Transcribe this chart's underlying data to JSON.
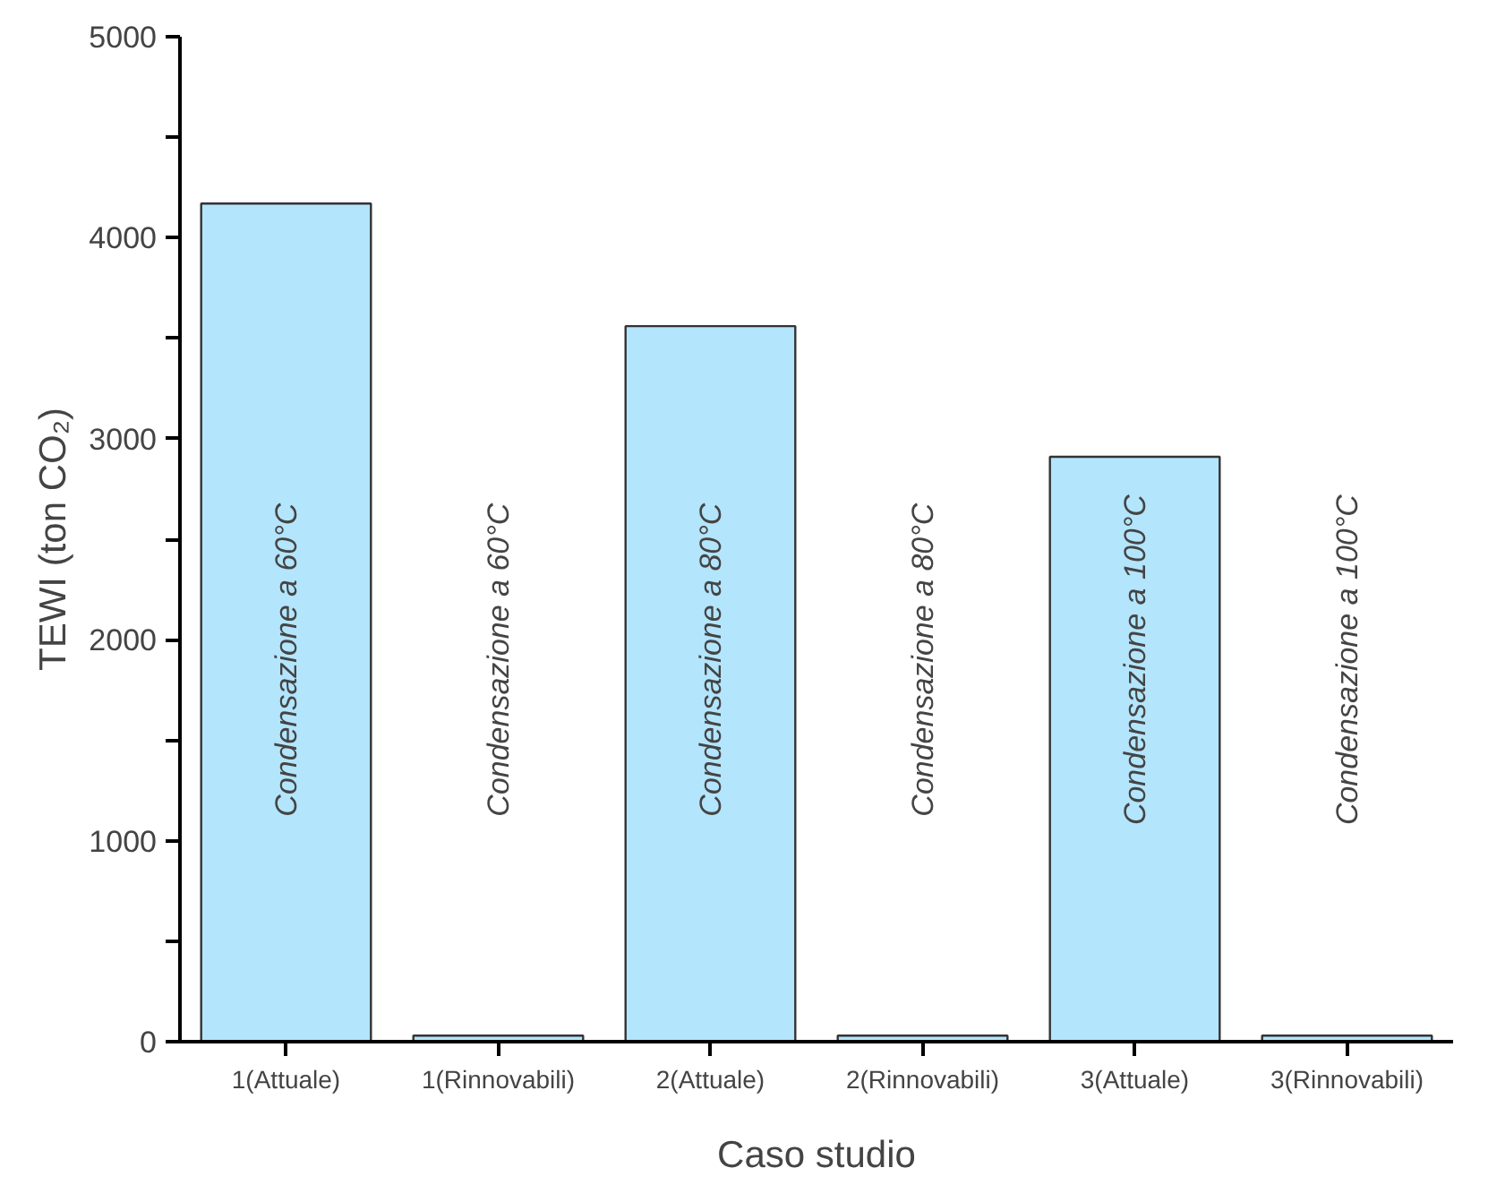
{
  "chart_data": {
    "type": "bar",
    "xlabel": "Caso studio",
    "ylabel": "TEWI (ton CO₂)",
    "categories": [
      "1(Attuale)",
      "1(Rinnovabili)",
      "2(Attuale)",
      "2(Rinnovabili)",
      "3(Attuale)",
      "3(Rinnovabili)"
    ],
    "values": [
      4170,
      30,
      3560,
      30,
      2910,
      30
    ],
    "color": "#b3e5fc",
    "ylim": [
      0,
      5000
    ],
    "yticks": [
      0,
      {
        "value": 500,
        "label": null
      },
      1000,
      {
        "value": 1500,
        "label": null
      },
      2000,
      {
        "value": 2500,
        "label": null
      },
      3000,
      {
        "value": 3500,
        "label": null
      },
      4000,
      {
        "value": 4500,
        "label": null
      },
      5000
    ],
    "grid": false,
    "annotations": [
      "Condensazione a 60°C",
      "Condensazione a 60°C",
      "Condensazione a 80°C",
      "Condensazione a 80°C",
      "Condensazione a 100°C",
      "Condensazione a 100°C"
    ]
  }
}
